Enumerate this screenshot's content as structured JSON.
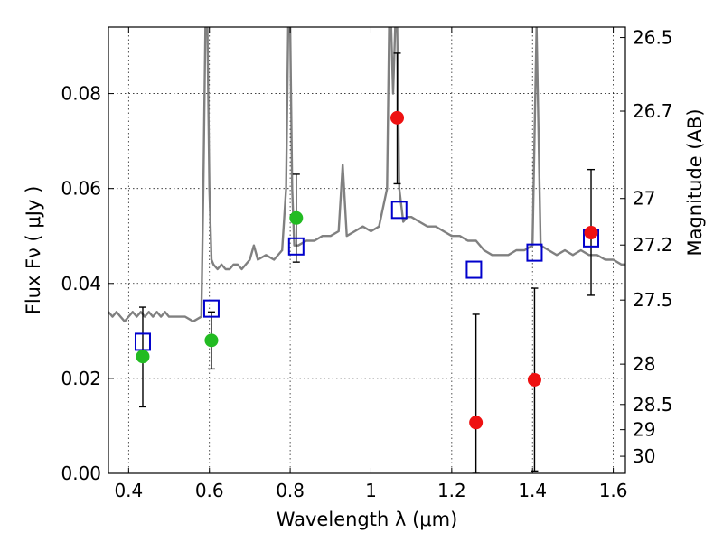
{
  "chart_data": {
    "type": "scatter",
    "xlabel": "Wavelength  λ (μm)",
    "ylabel": "Flux  Fν  ( μJy )",
    "y2label": "Magnitude (AB)",
    "xlim": [
      0.35,
      1.63
    ],
    "ylim": [
      0.0,
      0.094
    ],
    "x_ticks": [
      "0.4",
      "0.6",
      "0.8",
      "1",
      "1.2",
      "1.4",
      "1.6"
    ],
    "x_tick_values": [
      0.4,
      0.6,
      0.8,
      1.0,
      1.2,
      1.4,
      1.6
    ],
    "y_ticks": [
      "0.00",
      "0.02",
      "0.04",
      "0.06",
      "0.08"
    ],
    "y_tick_values": [
      0.0,
      0.02,
      0.04,
      0.06,
      0.08
    ],
    "y2_ticks": [
      {
        "label": "26.5",
        "flux": 0.0918
      },
      {
        "label": "26.7",
        "flux": 0.0763
      },
      {
        "label": "27",
        "flux": 0.0579
      },
      {
        "label": "27.2",
        "flux": 0.0481
      },
      {
        "label": "27.5",
        "flux": 0.0365
      },
      {
        "label": "28",
        "flux": 0.023
      },
      {
        "label": "28.5",
        "flux": 0.0145
      },
      {
        "label": "29",
        "flux": 0.0092
      },
      {
        "label": "30",
        "flux": 0.0036
      }
    ],
    "grid": true,
    "model_spectrum": {
      "color": "#808080",
      "x": [
        0.35,
        0.36,
        0.37,
        0.38,
        0.39,
        0.4,
        0.41,
        0.42,
        0.43,
        0.44,
        0.45,
        0.46,
        0.47,
        0.48,
        0.49,
        0.5,
        0.52,
        0.54,
        0.56,
        0.58,
        0.585,
        0.59,
        0.595,
        0.6,
        0.605,
        0.61,
        0.62,
        0.63,
        0.64,
        0.65,
        0.66,
        0.67,
        0.68,
        0.7,
        0.71,
        0.72,
        0.74,
        0.76,
        0.78,
        0.79,
        0.795,
        0.8,
        0.805,
        0.81,
        0.82,
        0.84,
        0.86,
        0.88,
        0.9,
        0.92,
        0.93,
        0.94,
        0.96,
        0.98,
        1.0,
        1.02,
        1.04,
        1.045,
        1.05,
        1.055,
        1.06,
        1.065,
        1.07,
        1.08,
        1.09,
        1.1,
        1.12,
        1.14,
        1.16,
        1.18,
        1.2,
        1.22,
        1.24,
        1.26,
        1.28,
        1.3,
        1.32,
        1.34,
        1.36,
        1.38,
        1.4,
        1.41,
        1.42,
        1.44,
        1.46,
        1.48,
        1.5,
        1.52,
        1.54,
        1.56,
        1.58,
        1.6,
        1.62,
        1.63
      ],
      "y": [
        0.034,
        0.033,
        0.034,
        0.033,
        0.032,
        0.033,
        0.034,
        0.033,
        0.034,
        0.033,
        0.034,
        0.033,
        0.034,
        0.033,
        0.034,
        0.033,
        0.033,
        0.033,
        0.032,
        0.033,
        0.06,
        0.094,
        0.094,
        0.06,
        0.045,
        0.044,
        0.043,
        0.044,
        0.043,
        0.043,
        0.044,
        0.044,
        0.043,
        0.045,
        0.048,
        0.045,
        0.046,
        0.045,
        0.047,
        0.06,
        0.094,
        0.094,
        0.06,
        0.048,
        0.048,
        0.049,
        0.049,
        0.05,
        0.05,
        0.051,
        0.065,
        0.05,
        0.051,
        0.052,
        0.051,
        0.052,
        0.06,
        0.094,
        0.094,
        0.08,
        0.094,
        0.094,
        0.06,
        0.053,
        0.054,
        0.054,
        0.053,
        0.052,
        0.052,
        0.051,
        0.05,
        0.05,
        0.049,
        0.049,
        0.047,
        0.046,
        0.046,
        0.046,
        0.047,
        0.047,
        0.048,
        0.094,
        0.048,
        0.047,
        0.046,
        0.047,
        0.046,
        0.047,
        0.046,
        0.046,
        0.045,
        0.045,
        0.044,
        0.044
      ]
    },
    "series": [
      {
        "name": "",
        "marker": "open-square",
        "color": "#0000cc",
        "x": [
          0.435,
          0.605,
          0.815,
          1.07,
          1.255,
          1.405,
          1.545
        ],
        "y": [
          0.0277,
          0.0347,
          0.0478,
          0.0555,
          0.0429,
          0.0465,
          0.0495
        ]
      },
      {
        "name": "",
        "marker": "filled-circle",
        "color": "#22bb22",
        "x": [
          0.435,
          0.605,
          0.815
        ],
        "y": [
          0.0246,
          0.028,
          0.0538
        ],
        "yerr_low": [
          0.014,
          0.022,
          0.0445
        ],
        "yerr_high": [
          0.035,
          0.034,
          0.063
        ]
      },
      {
        "name": "",
        "marker": "filled-circle",
        "color": "#ee1111",
        "x": [
          1.065,
          1.26,
          1.405,
          1.545
        ],
        "y": [
          0.0749,
          0.0107,
          0.0197,
          0.0507
        ],
        "yerr_low": [
          0.061,
          0.0,
          0.0005,
          0.0375
        ],
        "yerr_high": [
          0.0885,
          0.0335,
          0.039,
          0.064
        ]
      }
    ]
  }
}
